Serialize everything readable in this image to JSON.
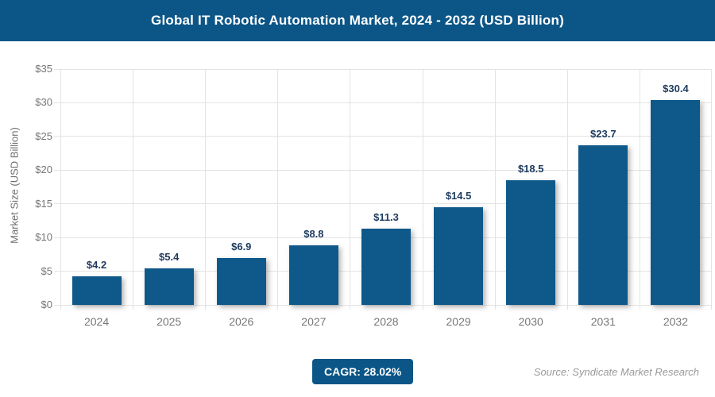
{
  "header": {
    "title": "Global IT Robotic Automation Market, 2024 - 2032 (USD Billion)"
  },
  "chart_data": {
    "type": "bar",
    "title": "Global IT Robotic Automation Market, 2024 - 2032 (USD Billion)",
    "categories": [
      "2024",
      "2025",
      "2026",
      "2027",
      "2028",
      "2029",
      "2030",
      "2031",
      "2032"
    ],
    "values": [
      4.2,
      5.4,
      6.9,
      8.8,
      11.3,
      14.5,
      18.5,
      23.7,
      30.4
    ],
    "value_labels": [
      "$4.2",
      "$5.4",
      "$6.9",
      "$8.8",
      "$11.3",
      "$14.5",
      "$18.5",
      "$23.7",
      "$30.4"
    ],
    "xlabel": "",
    "ylabel": "Market Size (USD Billion)",
    "ylim": [
      0,
      35
    ],
    "y_tick_step": 5,
    "y_tick_labels": [
      "$0",
      "$5",
      "$10",
      "$15",
      "$20",
      "$25",
      "$30",
      "$35"
    ],
    "grid": true,
    "legend": "none"
  },
  "footer": {
    "cagr_label": "CAGR: 28.02%",
    "source": "Source: Syndicate Market Research"
  },
  "colors": {
    "accent": "#0c5687",
    "bar": "#0e588a",
    "value_label": "#1e3a5f",
    "axis_text": "#767676",
    "gridline": "#e3e3e3"
  }
}
